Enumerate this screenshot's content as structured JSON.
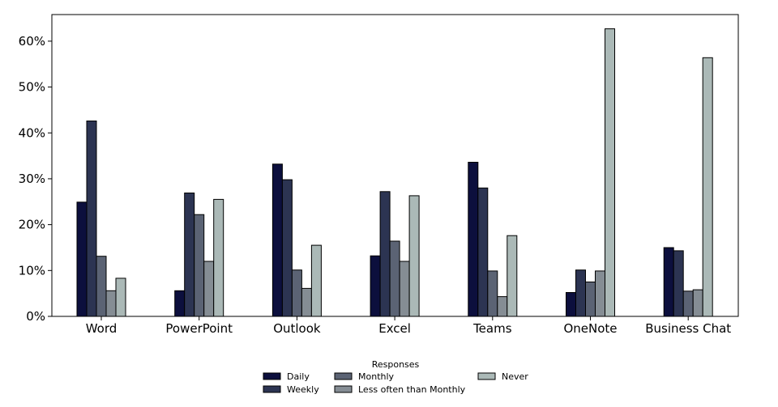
{
  "chart_data": {
    "type": "bar",
    "categories": [
      "Word",
      "PowerPoint",
      "Outlook",
      "Excel",
      "Teams",
      "OneNote",
      "Business Chat"
    ],
    "series": [
      {
        "name": "Daily",
        "color": "#0c0f3d",
        "values": [
          24.9,
          5.6,
          33.2,
          13.2,
          33.6,
          5.2,
          15.0
        ]
      },
      {
        "name": "Weekly",
        "color": "#2c3452",
        "values": [
          42.6,
          26.9,
          29.8,
          27.2,
          28.0,
          10.1,
          14.3
        ]
      },
      {
        "name": "Monthly",
        "color": "#5b6374",
        "values": [
          13.1,
          22.2,
          10.1,
          16.4,
          9.9,
          7.5,
          5.5
        ]
      },
      {
        "name": "Less often than Monthly",
        "color": "#858d94",
        "values": [
          5.6,
          12.0,
          6.1,
          12.0,
          4.3,
          9.9,
          5.8
        ]
      },
      {
        "name": "Never",
        "color": "#abb9b7",
        "values": [
          8.3,
          25.5,
          15.5,
          26.3,
          17.6,
          62.7,
          56.4
        ]
      }
    ],
    "yticks": [
      "0%",
      "10%",
      "20%",
      "30%",
      "40%",
      "50%",
      "60%"
    ],
    "ylim": [
      0,
      65.8
    ],
    "legend_title": "Responses",
    "legend_position": "bottom-center",
    "grid": false
  }
}
